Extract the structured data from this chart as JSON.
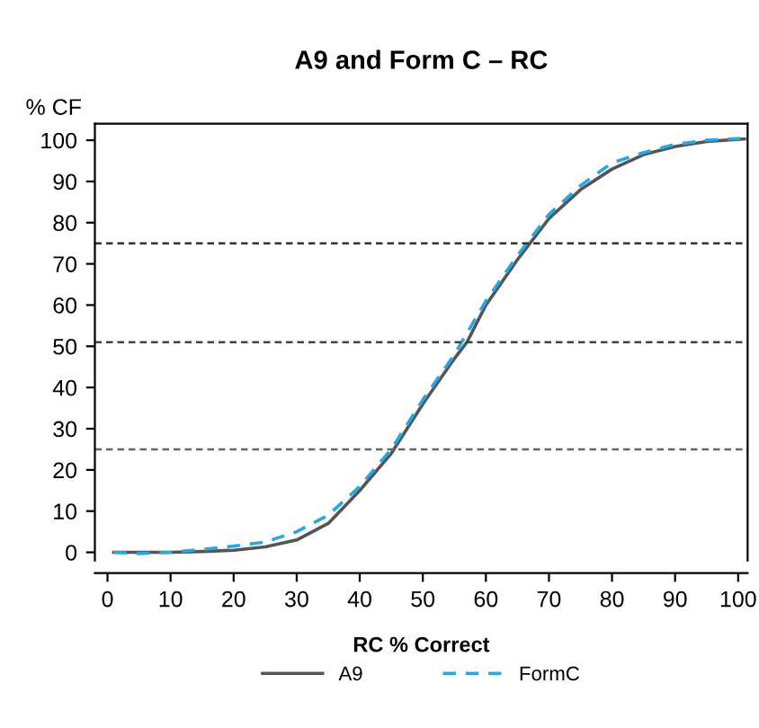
{
  "chart_data": {
    "type": "line",
    "title": "A9 and Form C – RC",
    "xlabel": "RC % Correct",
    "ylabel": "% CF",
    "xlim": [
      -2,
      101.5
    ],
    "ylim": [
      -2,
      104
    ],
    "xticks": [
      0,
      10,
      20,
      30,
      40,
      50,
      60,
      70,
      80,
      90,
      100
    ],
    "yticks": [
      0,
      10,
      20,
      30,
      40,
      50,
      60,
      70,
      80,
      90,
      100
    ],
    "grid": false,
    "legend": "bottom",
    "ref_lines": [
      {
        "axis": "y",
        "value": 75,
        "color": "#333333",
        "line_style": "dotted"
      },
      {
        "axis": "y",
        "value": 51,
        "color": "#444444",
        "line_style": "dotted"
      },
      {
        "axis": "y",
        "value": 25,
        "color": "#666666",
        "line_style": "dotted"
      }
    ],
    "series": [
      {
        "name": "A9",
        "color": "#555555",
        "line_style": "solid",
        "x": [
          1,
          10,
          15,
          20,
          25,
          30,
          35,
          40,
          45,
          50,
          55,
          57,
          60,
          65,
          67,
          70,
          75,
          80,
          85,
          90,
          95,
          101
        ],
        "values": [
          0,
          0,
          0.2,
          0.5,
          1.3,
          3,
          7,
          15,
          24,
          36,
          47,
          51,
          60,
          71,
          75,
          81,
          88,
          93,
          96.5,
          98.5,
          99.7,
          100.3
        ]
      },
      {
        "name": "FormC",
        "color": "#29a8e0",
        "line_style": "dashed",
        "x": [
          1,
          5,
          10,
          15,
          20,
          25,
          30,
          35,
          40,
          45,
          50,
          55,
          60,
          65,
          70,
          75,
          80,
          85,
          90,
          95,
          101
        ],
        "values": [
          0,
          -0.3,
          0,
          0.7,
          1.5,
          2.5,
          5,
          9,
          16,
          25,
          37,
          48,
          61,
          72,
          82,
          89,
          94.5,
          97,
          99,
          100,
          100.5
        ]
      }
    ]
  }
}
